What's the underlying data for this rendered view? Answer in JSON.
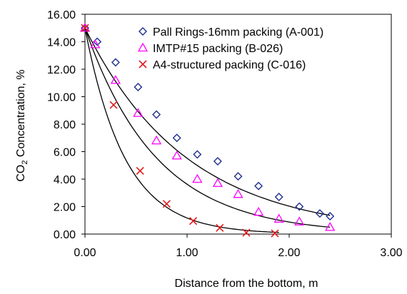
{
  "chart_data": {
    "type": "scatter",
    "title": "",
    "xlabel": "Distance from the bottom, m",
    "ylabel": {
      "prefix": "CO",
      "sub": "2",
      "suffix": " Concentration, %"
    },
    "xlim": [
      0,
      3
    ],
    "ylim": [
      0,
      16
    ],
    "xticks": [
      "0.00",
      "1.00",
      "2.00",
      "3.00"
    ],
    "yticks": [
      "0.00",
      "2.00",
      "4.00",
      "6.00",
      "8.00",
      "10.00",
      "12.00",
      "14.00",
      "16.00"
    ],
    "grid": false,
    "legend_position": "top-right",
    "series": [
      {
        "name": "Pall Rings-16mm packing (A-001)",
        "marker": "diamond",
        "color": "#1f2f8f",
        "x": [
          0.0,
          0.12,
          0.3,
          0.52,
          0.7,
          0.9,
          1.1,
          1.3,
          1.5,
          1.7,
          1.9,
          2.1,
          2.3,
          2.4
        ],
        "y": [
          15.0,
          14.0,
          12.5,
          10.7,
          8.7,
          7.0,
          5.8,
          5.3,
          4.2,
          3.5,
          2.7,
          2.0,
          1.5,
          1.3
        ]
      },
      {
        "name": "IMTP#15 packing (B-026)",
        "marker": "triangle",
        "color": "#ff00ff",
        "x": [
          0.0,
          0.1,
          0.3,
          0.52,
          0.7,
          0.9,
          1.1,
          1.3,
          1.5,
          1.7,
          1.9,
          2.1,
          2.4
        ],
        "y": [
          15.0,
          13.8,
          11.2,
          8.8,
          6.8,
          5.7,
          4.0,
          3.7,
          2.9,
          1.6,
          1.1,
          0.9,
          0.5
        ]
      },
      {
        "name": "A4-structured packing (C-016)",
        "marker": "x",
        "color": "#e31a1c",
        "x": [
          0.0,
          0.28,
          0.54,
          0.8,
          1.06,
          1.32,
          1.58,
          1.86
        ],
        "y": [
          15.0,
          9.4,
          4.6,
          2.2,
          0.95,
          0.45,
          0.1,
          0.05
        ]
      }
    ],
    "trendlines": [
      {
        "for": "Pall Rings-16mm packing (A-001)",
        "x0": 0,
        "x1": 2.4,
        "a": 15.0,
        "k": 1.0
      },
      {
        "for": "IMTP#15 packing (B-026)",
        "x0": 0,
        "x1": 2.4,
        "a": 15.0,
        "k": 1.42
      },
      {
        "for": "A4-structured packing (C-016)",
        "x0": 0,
        "x1": 1.9,
        "a": 15.0,
        "k": 2.55,
        "floor": 0.05
      }
    ]
  }
}
